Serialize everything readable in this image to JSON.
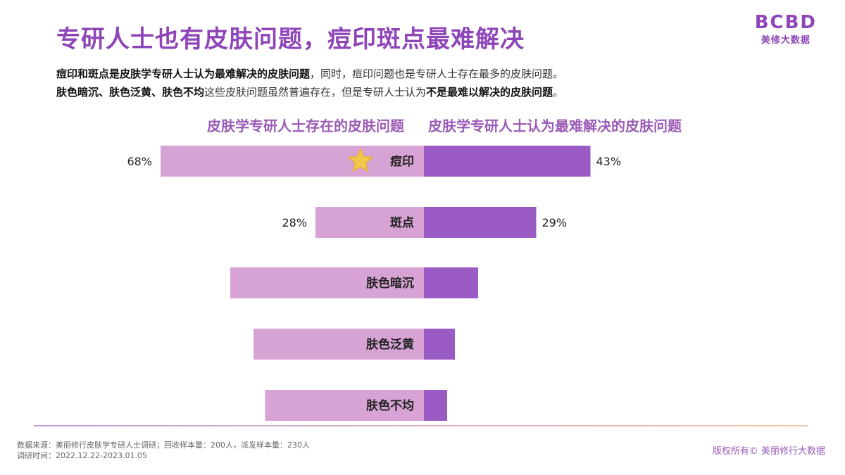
{
  "title": "专研人士也有皮肤问题，痘印斑点最难解决",
  "logo": {
    "mark": "BCBD",
    "sub": "美修大数据"
  },
  "subtitle_line1": [
    {
      "text": "痘印和斑点是皮肤学专研人士认为最难解决的皮肤问题",
      "bold": true
    },
    {
      "text": "，同时，痘印问题也是专研人士存在最多的皮肤问题。",
      "bold": false
    }
  ],
  "subtitle_line2": [
    {
      "text": "肤色暗沉、肤色泛黄、肤色不均",
      "bold": true
    },
    {
      "text": "这些皮肤问题虽然普遍存在，但是专研人士认为",
      "bold": false
    },
    {
      "text": "不是最难以解决的皮肤问题",
      "bold": true
    },
    {
      "text": "。",
      "bold": false
    }
  ],
  "chart_data": {
    "type": "bar",
    "orientation": "horizontal-diverging",
    "categories": [
      "痘印",
      "斑点",
      "肤色暗沉",
      "肤色泛黄",
      "肤色不均"
    ],
    "series": [
      {
        "name": "皮肤学专研人士存在的皮肤问题",
        "side": "left",
        "values": [
          68,
          28,
          50,
          44,
          41
        ],
        "labels": [
          "68%",
          "28%",
          "",
          "",
          ""
        ]
      },
      {
        "name": "皮肤学专研人士认为最难解决的皮肤问题",
        "side": "right",
        "values": [
          43,
          29,
          14,
          8,
          6
        ],
        "labels": [
          "43%",
          "29%",
          "",
          "",
          ""
        ]
      }
    ],
    "highlight": {
      "category": "痘印",
      "marker": "star-icon"
    },
    "colors": {
      "left": "#d7a3d4",
      "right": "#9b5bc4",
      "star": "#f2c84b",
      "header": "#9b5bb6"
    }
  },
  "footnote_line1": "数据来源：美丽修行皮肤学专研人士调研；回收样本量：200人，派发样本量：230人",
  "footnote_line2": "调研时间：2022.12.22-2023.01.05",
  "copyright": "版权所有© 美丽修行大数据"
}
